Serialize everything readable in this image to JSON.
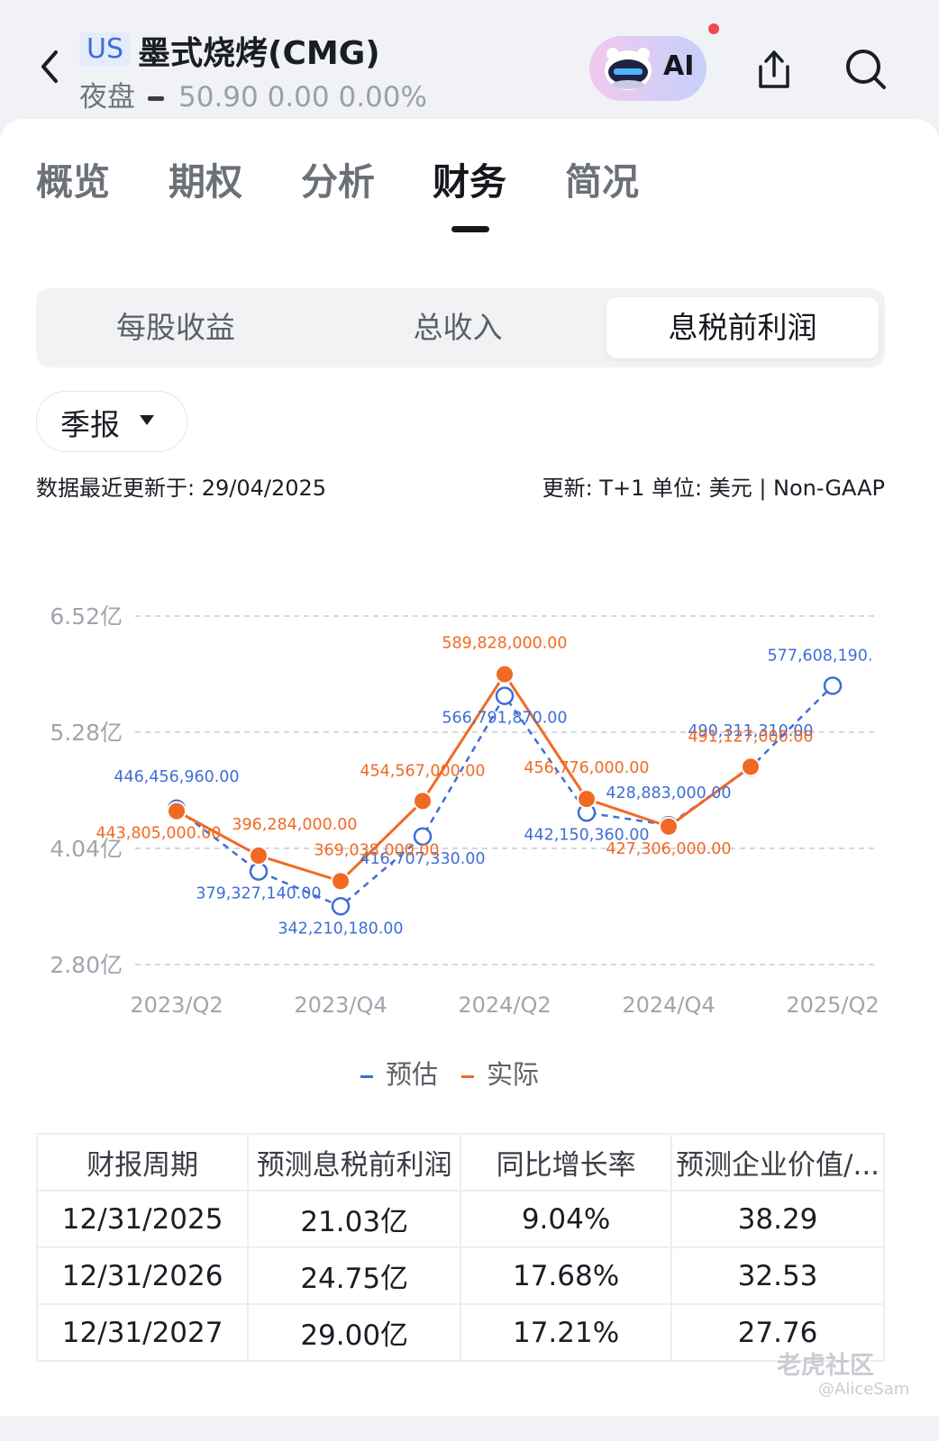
{
  "header": {
    "market_badge": "US",
    "stock_title": "墨式烧烤(CMG)",
    "session_label": "夜盘",
    "price_line": "50.90  0.00  0.00%",
    "ai_label": "AI"
  },
  "tabs": [
    "概览",
    "期权",
    "分析",
    "财务",
    "简况"
  ],
  "active_tab": "财务",
  "metric_tabs": [
    "每股收益",
    "总收入",
    "息税前利润"
  ],
  "active_metric": "息税前利润",
  "period_dropdown": "季报",
  "update_text": "数据最近更新于: 29/04/2025",
  "unit_text": "更新: T+1  单位: 美元 | Non-GAAP",
  "chart_data": {
    "type": "line",
    "x": [
      "2023/Q2",
      "2023/Q3",
      "2023/Q4",
      "2024/Q1",
      "2024/Q2",
      "2024/Q3",
      "2024/Q4",
      "2025/Q1",
      "2025/Q2"
    ],
    "x_tick_labels": [
      "2023/Q2",
      "",
      "2023/Q4",
      "",
      "2024/Q2",
      "",
      "2024/Q4",
      "",
      "2025/Q2"
    ],
    "y_tick_labels": [
      "6.52亿",
      "5.28亿",
      "4.04亿",
      "2.80亿"
    ],
    "ylim": [
      280000000,
      652000000
    ],
    "y_ticks": [
      652000000,
      528000000,
      404000000,
      280000000
    ],
    "grid": true,
    "legend_position": "bottom",
    "series": [
      {
        "name": "预估",
        "color": "#3e6ed6",
        "style": "dashed",
        "marker": "hollow-circle",
        "values": [
          446456960,
          379327140,
          342210180,
          416707330,
          566791870,
          442150360,
          428883000,
          490311310,
          577608190
        ],
        "labels": [
          "446,456,960.00",
          "379,327,140.00",
          "342,210,180.00",
          "416,707,330.00",
          "566,791,870.00",
          "442,150,360.00",
          "428,883,000.00",
          "490,311,310.00",
          "577,608,190."
        ]
      },
      {
        "name": "实际",
        "color": "#f06a23",
        "style": "solid",
        "marker": "filled-circle",
        "values": [
          443805000,
          396284000,
          369038000,
          454567000,
          589828000,
          456776000,
          427306000,
          491127000,
          null
        ],
        "labels": [
          "443,805,000.00",
          "396,284,000.00",
          "369,038,000.00",
          "454,567,000.00",
          "589,828,000.00",
          "456,776,000.00",
          "427,306,000.00",
          "491,127,000.00",
          ""
        ]
      }
    ]
  },
  "table": {
    "headers": [
      "财报周期",
      "预测息税前利润",
      "同比增长率",
      "预测企业价值/..."
    ],
    "rows": [
      [
        "12/31/2025",
        "21.03亿",
        "9.04%",
        "38.29"
      ],
      [
        "12/31/2026",
        "24.75亿",
        "17.68%",
        "32.53"
      ],
      [
        "12/31/2027",
        "29.00亿",
        "17.21%",
        "27.76"
      ]
    ]
  },
  "watermark": {
    "brand": "老虎社区",
    "user": "@AliceSam"
  }
}
